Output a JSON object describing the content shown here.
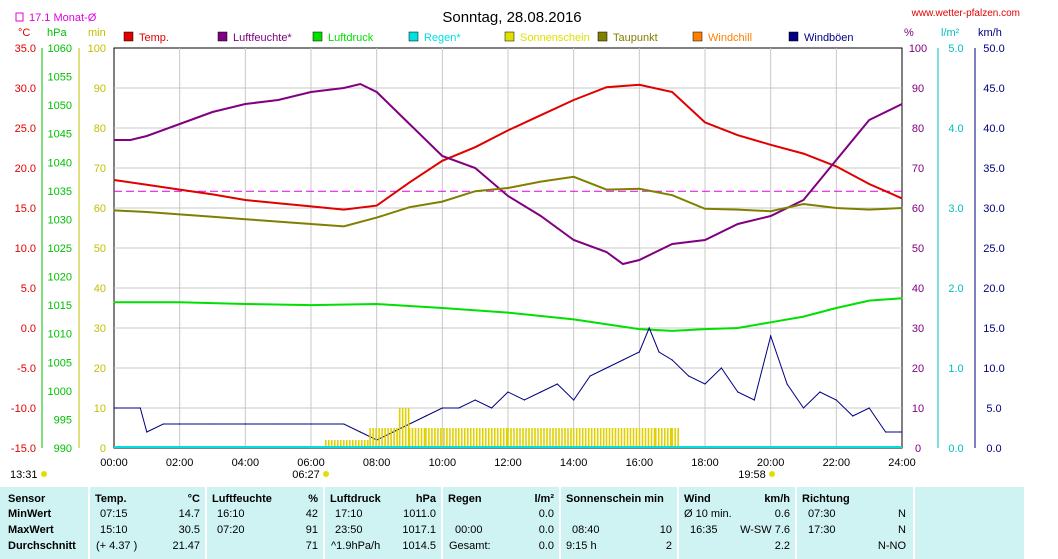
{
  "header": {
    "title": "Sonntag, 28.08.2016",
    "website": "www.wetter-pfalzen.com",
    "month_avg_label": "17.1 Monat-Ø",
    "unit_c": "°C",
    "unit_hpa": "hPa",
    "unit_min": "min",
    "unit_pct": "%",
    "unit_lm2": "l/m²",
    "unit_kmh": "km/h"
  },
  "legend": [
    {
      "label": "Temp.",
      "color": "#e00000"
    },
    {
      "label": "Luftfeuchte*",
      "color": "#800080"
    },
    {
      "label": "Luftdruck",
      "color": "#00e000"
    },
    {
      "label": "Regen*",
      "color": "#00e0e0"
    },
    {
      "label": "Sonnenschein",
      "color": "#e0e000"
    },
    {
      "label": "Taupunkt",
      "color": "#808000"
    },
    {
      "label": "Windchill",
      "color": "#ff8000"
    },
    {
      "label": "Windböen",
      "color": "#000080"
    }
  ],
  "chart_data": {
    "type": "line",
    "title": "Sonntag, 28.08.2016",
    "x_ticks": [
      "00:00",
      "02:00",
      "04:00",
      "06:00",
      "08:00",
      "10:00",
      "12:00",
      "14:00",
      "16:00",
      "18:00",
      "20:00",
      "22:00",
      "24:00"
    ],
    "axes": {
      "temp_c": {
        "ticks": [
          "35.0",
          "30.0",
          "25.0",
          "20.0",
          "15.0",
          "10.0",
          "5.0",
          "0.0",
          "-5.0",
          "-10.0",
          "-15.0"
        ],
        "range": [
          -15,
          35
        ],
        "color": "#e00000"
      },
      "pressure_hpa": {
        "ticks": [
          "1060",
          "1055",
          "1050",
          "1045",
          "1040",
          "1035",
          "1030",
          "1025",
          "1020",
          "1015",
          "1010",
          "1005",
          "1000",
          "995",
          "990"
        ],
        "range": [
          990,
          1060
        ],
        "color": "#00c000"
      },
      "sunshine_min": {
        "ticks": [
          "100",
          "90",
          "80",
          "70",
          "60",
          "50",
          "40",
          "30",
          "20",
          "10",
          "0"
        ],
        "range": [
          0,
          100
        ],
        "color": "#c0c000"
      },
      "humidity_pct": {
        "ticks": [
          "100",
          "90",
          "80",
          "70",
          "60",
          "50",
          "40",
          "30",
          "20",
          "10",
          "0"
        ],
        "range": [
          0,
          100
        ],
        "color": "#800080"
      },
      "rain_lm2": {
        "ticks": [
          "5.0",
          "4.0",
          "3.0",
          "2.0",
          "1.0",
          "0.0"
        ],
        "range": [
          0,
          5
        ],
        "color": "#00c0c0"
      },
      "wind_kmh": {
        "ticks": [
          "50.0",
          "45.0",
          "40.0",
          "35.0",
          "30.0",
          "25.0",
          "20.0",
          "15.0",
          "10.0",
          "5.0",
          "0.0"
        ],
        "range": [
          0,
          50
        ],
        "color": "#000080"
      }
    },
    "month_avg_temp": 17.1,
    "series": [
      {
        "name": "Temp.",
        "axis": "temp_c",
        "color": "#e00000",
        "x": [
          0,
          1,
          2,
          3,
          4,
          5,
          6,
          7,
          8,
          9,
          10,
          11,
          12,
          13,
          14,
          15,
          16,
          17,
          18,
          19,
          20,
          21,
          22,
          23,
          24
        ],
        "y": [
          18.5,
          17.9,
          17.3,
          16.7,
          16.0,
          15.6,
          15.2,
          14.8,
          15.3,
          18.2,
          20.9,
          22.6,
          24.7,
          26.6,
          28.5,
          30.1,
          30.4,
          29.5,
          25.7,
          24.1,
          22.9,
          21.8,
          20.2,
          18.0,
          16.2
        ]
      },
      {
        "name": "Luftfeuchte*",
        "axis": "humidity_pct",
        "color": "#800080",
        "x": [
          0,
          0.5,
          1,
          2,
          3,
          4,
          5,
          6,
          7,
          7.5,
          8,
          8.5,
          9,
          10,
          11,
          12,
          13,
          14,
          15,
          15.5,
          16,
          17,
          18,
          19,
          20,
          21,
          22,
          23,
          24
        ],
        "y": [
          77,
          77,
          78,
          81,
          84,
          86,
          87,
          89,
          90,
          91,
          89,
          85,
          81,
          73,
          70,
          63,
          58,
          52,
          49,
          46,
          47,
          51,
          52,
          56,
          58,
          62,
          72,
          82,
          86
        ]
      },
      {
        "name": "Luftdruck",
        "axis": "pressure_hpa",
        "color": "#00e000",
        "x": [
          0,
          2,
          4,
          6,
          8,
          10,
          12,
          14,
          16,
          17,
          18,
          19,
          20,
          21,
          22,
          23,
          24
        ],
        "y": [
          1015.5,
          1015.5,
          1015.2,
          1015.0,
          1015.2,
          1014.5,
          1013.7,
          1012.5,
          1010.8,
          1010.5,
          1010.8,
          1011.0,
          1012.0,
          1013.0,
          1014.5,
          1015.8,
          1016.2
        ]
      },
      {
        "name": "Taupunkt",
        "axis": "temp_c",
        "color": "#808000",
        "x": [
          0,
          1,
          2,
          3,
          4,
          5,
          6,
          7,
          8,
          9,
          10,
          11,
          12,
          13,
          14,
          15,
          16,
          17,
          18,
          19,
          20,
          21,
          22,
          23,
          24
        ],
        "y": [
          14.7,
          14.5,
          14.2,
          13.9,
          13.6,
          13.3,
          13.0,
          12.7,
          13.8,
          15.1,
          15.8,
          17.1,
          17.5,
          18.3,
          18.9,
          17.3,
          17.4,
          16.6,
          14.9,
          14.8,
          14.6,
          15.5,
          15.0,
          14.8,
          15.0
        ]
      },
      {
        "name": "Windböen",
        "axis": "wind_kmh",
        "color": "#000080",
        "x": [
          0,
          0.8,
          1,
          1.5,
          2,
          3,
          4,
          5,
          6,
          7,
          7.5,
          8,
          8.5,
          9,
          9.5,
          10,
          10.5,
          11,
          11.5,
          12,
          12.5,
          13,
          13.5,
          14,
          14.5,
          15,
          15.5,
          16,
          16.3,
          16.6,
          17,
          17.5,
          18,
          18.5,
          19,
          19.5,
          20,
          20.5,
          21,
          21.5,
          22,
          22.5,
          23,
          23.5,
          24
        ],
        "y": [
          5,
          5,
          2,
          3,
          3,
          3,
          3,
          3,
          3,
          3,
          2,
          1,
          2,
          3,
          4,
          5,
          5,
          6,
          5,
          7,
          6,
          7,
          8,
          6,
          9,
          10,
          11,
          12,
          15,
          12,
          11,
          9,
          8,
          10,
          7,
          6,
          14,
          8,
          5,
          7,
          6,
          4,
          5,
          2,
          2
        ]
      },
      {
        "name": "Sonnenschein",
        "axis": "sunshine_min",
        "color": "#e0d000",
        "x": [
          6.45,
          7.8,
          8.7,
          9.0,
          9.5,
          10.5,
          12,
          14,
          15,
          16.5,
          17.0,
          17.2,
          17.3
        ],
        "y": [
          2,
          5,
          10,
          5,
          5,
          5,
          5,
          5,
          5,
          5,
          5,
          0,
          5
        ]
      }
    ]
  },
  "footer": {
    "sunrise": "13:31",
    "time_a": "06:27",
    "time_b": "19:58"
  },
  "stats": {
    "rows": [
      "Sensor",
      "MinWert",
      "MaxWert",
      "Durchschnitt"
    ],
    "temp": {
      "label": "Temp.",
      "unit": "°C",
      "min_time": "07:15",
      "min": "14.7",
      "max_time": "15:10",
      "max": "30.5",
      "avg_note": "(+ 4.37 )",
      "avg": "21.47"
    },
    "humidity": {
      "label": "Luftfeuchte",
      "unit": "%",
      "min_time": "16:10",
      "min": "42",
      "max_time": "07:20",
      "max": "91",
      "avg": "71"
    },
    "pressure": {
      "label": "Luftdruck",
      "unit": "hPa",
      "min_time": "17:10",
      "min": "1011.0",
      "max_time": "23:50",
      "max": "1017.1",
      "avg_note": "^1.9hPa/h",
      "avg": "1014.5"
    },
    "rain": {
      "label": "Regen",
      "unit": "l/m²",
      "min": "0.0",
      "max_time": "00:00",
      "max": "0.0",
      "avg_note": "Gesamt:",
      "avg": "0.0"
    },
    "sun": {
      "label": "Sonnenschein min",
      "max_time": "08:40",
      "max": "10",
      "avg_note": "9:15 h",
      "avg": "2"
    },
    "wind": {
      "label": "Wind",
      "unit": "km/h",
      "min_note": "Ø 10 min.",
      "min": "0.6",
      "max_time": "16:35",
      "max": "W-SW 7.6",
      "avg": "2.2"
    },
    "dir": {
      "label": "Richtung",
      "min_time": "07:30",
      "min": "N",
      "max_time": "17:30",
      "max": "N",
      "avg": "N-NO"
    }
  }
}
